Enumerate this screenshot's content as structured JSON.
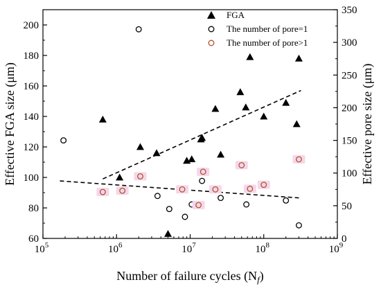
{
  "chart_data": {
    "type": "scatter",
    "xlabel": "Number of failure cycles (N",
    "xlabel_sub": "f",
    "xlabel_end": ")",
    "ylabel": "Effective FGA size (μm)",
    "y2label": "Effective pore size (μm)",
    "xscale": "log",
    "xlim_exp": [
      5,
      9
    ],
    "x_ticks": [
      {
        "base": "10",
        "exp": "5",
        "v": 5
      },
      {
        "base": "10",
        "exp": "6",
        "v": 6
      },
      {
        "base": "10",
        "exp": "7",
        "v": 7
      },
      {
        "base": "10",
        "exp": "8",
        "v": 8
      },
      {
        "base": "10",
        "exp": "9",
        "v": 9
      }
    ],
    "ylim": [
      60,
      210
    ],
    "y_ticks": [
      "60",
      "80",
      "100",
      "120",
      "140",
      "160",
      "180",
      "200"
    ],
    "y2lim": [
      0,
      350
    ],
    "y2_ticks": [
      "0",
      "50",
      "100",
      "150",
      "200",
      "250",
      "300",
      "350"
    ],
    "grid": false,
    "legend_position": "top-right",
    "series": [
      {
        "name": "FGA",
        "axis": "left",
        "marker": "triangle",
        "color": "#000000",
        "points": [
          {
            "x": 650000,
            "y": 138
          },
          {
            "x": 1100000,
            "y": 100
          },
          {
            "x": 2100000,
            "y": 120
          },
          {
            "x": 3500000,
            "y": 116
          },
          {
            "x": 5000000,
            "y": 63
          },
          {
            "x": 9000000,
            "y": 111
          },
          {
            "x": 10500000,
            "y": 112
          },
          {
            "x": 14000000,
            "y": 125
          },
          {
            "x": 14500000,
            "y": 126
          },
          {
            "x": 22000000,
            "y": 145
          },
          {
            "x": 26000000,
            "y": 115
          },
          {
            "x": 48000000,
            "y": 156
          },
          {
            "x": 57000000,
            "y": 146
          },
          {
            "x": 65000000,
            "y": 179
          },
          {
            "x": 100000000,
            "y": 140
          },
          {
            "x": 200000000,
            "y": 149
          },
          {
            "x": 280000000,
            "y": 135
          },
          {
            "x": 300000000,
            "y": 178
          }
        ]
      },
      {
        "name": "The number of pore=1",
        "axis": "right",
        "marker": "circle",
        "color": "#000000",
        "points": [
          {
            "x": 190000,
            "y": 150
          },
          {
            "x": 2000000,
            "y": 320
          },
          {
            "x": 3600000,
            "y": 65
          },
          {
            "x": 5200000,
            "y": 45
          },
          {
            "x": 8500000,
            "y": 33
          },
          {
            "x": 10500000,
            "y": 52
          },
          {
            "x": 14500000,
            "y": 88
          },
          {
            "x": 26000000,
            "y": 62
          },
          {
            "x": 58000000,
            "y": 52
          },
          {
            "x": 200000000,
            "y": 58
          },
          {
            "x": 300000000,
            "y": 20
          }
        ]
      },
      {
        "name": "The number of pore>1",
        "axis": "right",
        "marker": "circle",
        "color": "#b5502a",
        "points": [
          {
            "x": 650000,
            "y": 71
          },
          {
            "x": 1200000,
            "y": 73
          },
          {
            "x": 2100000,
            "y": 95
          },
          {
            "x": 7800000,
            "y": 75
          },
          {
            "x": 13000000,
            "y": 51
          },
          {
            "x": 15000000,
            "y": 102
          },
          {
            "x": 22000000,
            "y": 75
          },
          {
            "x": 50000000,
            "y": 112
          },
          {
            "x": 65000000,
            "y": 76
          },
          {
            "x": 100000000,
            "y": 82
          },
          {
            "x": 300000000,
            "y": 121
          }
        ]
      }
    ],
    "fit_lines": [
      {
        "axis": "left",
        "style": "dashed",
        "x": [
          650000,
          320000000
        ],
        "y": [
          99,
          157
        ]
      },
      {
        "axis": "right",
        "style": "dashed",
        "x": [
          170000,
          300000000
        ],
        "y": [
          88,
          62
        ]
      }
    ],
    "colors": {
      "axis": "#000000",
      "pore_gt1_highlight": "#f4d7ea"
    }
  }
}
